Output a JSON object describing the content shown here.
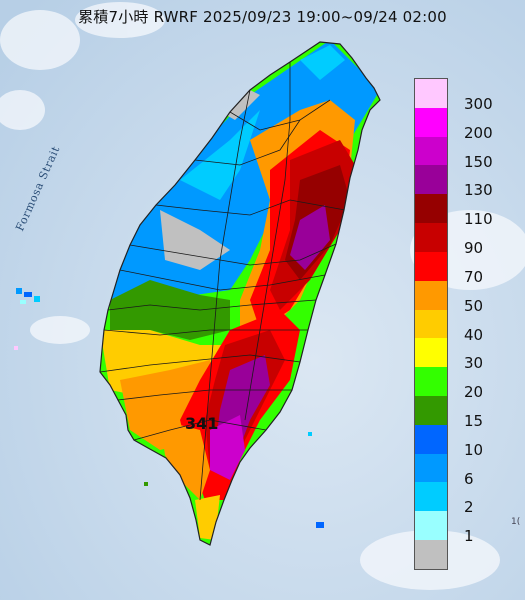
{
  "title": "累積7小時 RWRF 2025/09/23 19:00~09/24 02:00",
  "sea_label": "Formosa Strait",
  "edge_note": "1(",
  "peak_label": "341",
  "legend": {
    "levels": [
      "300",
      "200",
      "150",
      "130",
      "110",
      "90",
      "70",
      "50",
      "40",
      "30",
      "20",
      "15",
      "10",
      "6",
      "2",
      "1"
    ],
    "colors": [
      "#ffc8ff",
      "#ff00ff",
      "#cc00cc",
      "#990099",
      "#960000",
      "#c80000",
      "#ff0000",
      "#ff9900",
      "#ffcc00",
      "#ffff00",
      "#33ff00",
      "#339900",
      "#0066ff",
      "#0099ff",
      "#00ccff",
      "#99ffff",
      "#c0c0c0"
    ]
  }
}
